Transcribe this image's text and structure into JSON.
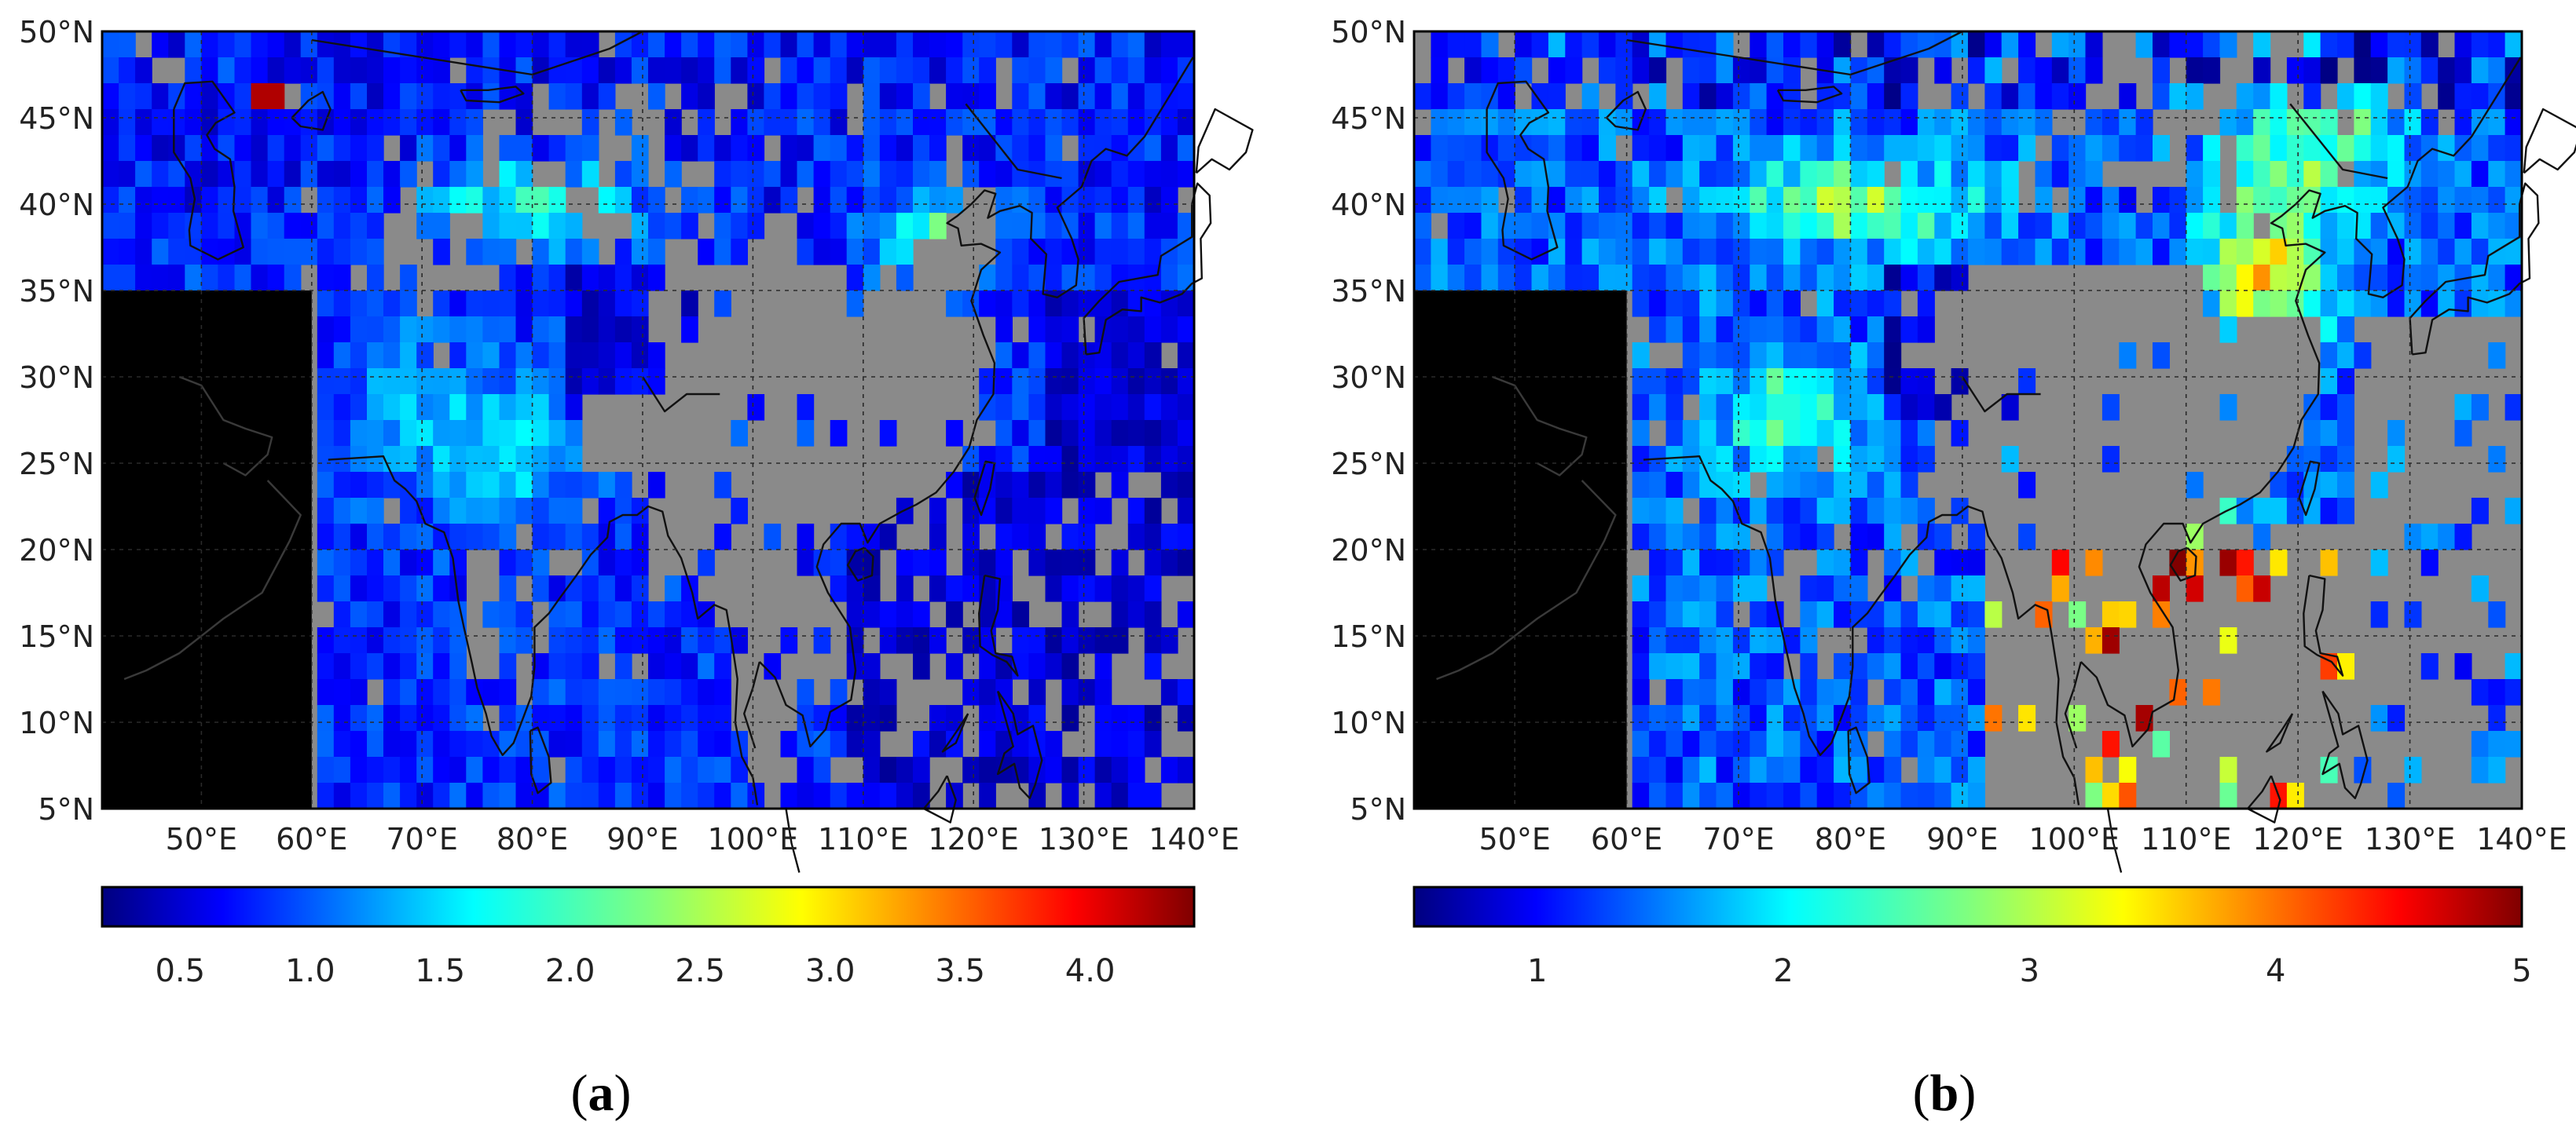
{
  "figure": {
    "panels": [
      {
        "id": "a",
        "label": "a",
        "lat_ticks": [
          "50°N",
          "45°N",
          "40°N",
          "35°N",
          "30°N",
          "25°N",
          "20°N",
          "15°N",
          "10°N",
          "5°N"
        ],
        "lon_ticks": [
          "50°E",
          "60°E",
          "70°E",
          "80°E",
          "90°E",
          "100°E",
          "110°E",
          "120°E",
          "130°E",
          "140°E"
        ],
        "colorbar": {
          "min": 0.2,
          "max": 4.4,
          "ticks": [
            0.5,
            1.0,
            1.5,
            2.0,
            2.5,
            3.0,
            3.5,
            4.0
          ],
          "tick_labels": [
            "0.5",
            "1.0",
            "1.5",
            "2.0",
            "2.5",
            "3.0",
            "3.5",
            "4.0"
          ]
        }
      },
      {
        "id": "b",
        "label": "b",
        "lat_ticks": [
          "50°N",
          "45°N",
          "40°N",
          "35°N",
          "30°N",
          "25°N",
          "20°N",
          "15°N",
          "10°N",
          "5°N"
        ],
        "lon_ticks": [
          "50°E",
          "60°E",
          "70°E",
          "80°E",
          "90°E",
          "100°E",
          "110°E",
          "120°E",
          "130°E",
          "140°E"
        ],
        "colorbar": {
          "min": 0.5,
          "max": 5.0,
          "ticks": [
            1,
            2,
            3,
            4,
            5
          ],
          "tick_labels": [
            "1",
            "2",
            "3",
            "4",
            "5"
          ]
        }
      }
    ],
    "map_extent": {
      "lon_min": 41,
      "lon_max": 140,
      "lat_min": 5,
      "lat_max": 50
    },
    "colors": {
      "no_data": "#8a8a8a",
      "masked": "#000000",
      "grid": "#2a2a2a"
    },
    "colormap": "jet"
  }
}
